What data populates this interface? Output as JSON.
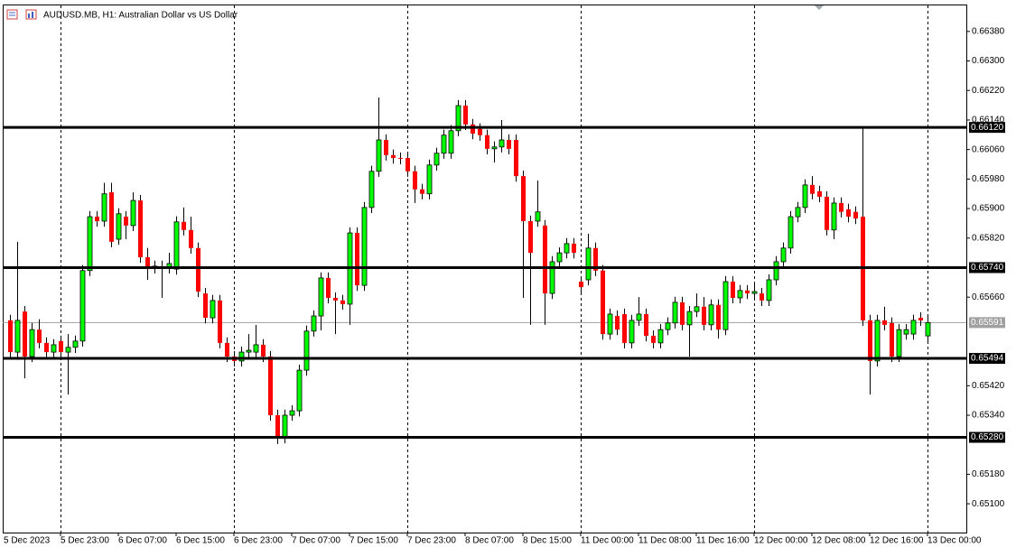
{
  "chart_data": {
    "type": "candlestick",
    "title": "AUDUSD.MB, H1:  Australian Dollar vs US Dollar",
    "up_color": "#00ff00",
    "down_color": "#ff0000",
    "open": [
      0.65597,
      0.65511,
      0.65621,
      0.65499,
      0.65572,
      0.65536,
      0.65511,
      0.65541,
      0.65511,
      0.65524,
      0.65541,
      0.65732,
      0.65878,
      0.65866,
      0.65944,
      0.65817,
      0.65878,
      0.65854,
      0.65922,
      0.65768,
      0.65739,
      0.65744,
      0.65739,
      0.65736,
      0.65864,
      0.65842,
      0.65793,
      0.6567,
      0.65604,
      0.65651,
      0.65536,
      0.65499,
      0.65487,
      0.65511,
      0.65511,
      0.65531,
      0.65499,
      0.6534,
      0.65279,
      0.6534,
      0.65352,
      0.65462,
      0.65568,
      0.65609,
      0.65712,
      0.65658,
      0.65651,
      0.65641,
      0.65834,
      0.65692,
      0.65903,
      0.66001,
      0.66086,
      0.66045,
      0.66037,
      0.66037,
      0.66001,
      0.65952,
      0.6594,
      0.66018,
      0.6605,
      0.6605,
      0.66111,
      0.66179,
      0.66128,
      0.66116,
      0.66099,
      0.66062,
      0.66067,
      0.66086,
      0.66086,
      0.65988,
      0.65866,
      0.65866,
      0.65854,
      0.6567,
      0.65756,
      0.6578,
      0.65805,
      0.65702,
      0.65707,
      0.65793,
      0.65732,
      0.6556,
      0.65609,
      0.65614,
      0.65536,
      0.65597,
      0.65614,
      0.65555,
      0.65536,
      0.65572,
      0.6559,
      0.65646,
      0.65585,
      0.65621,
      0.65634,
      0.65585,
      0.65639,
      0.65572,
      0.65702,
      0.65658,
      0.65678,
      0.6567,
      0.6567,
      0.65651,
      0.65707,
      0.65756,
      0.65793,
      0.65878,
      0.65903,
      0.65964,
      0.65947,
      0.65932,
      0.65842,
      0.65915,
      0.65898,
      0.65891,
      0.65878,
      0.65597,
      0.65487,
      0.65597,
      0.6559,
      0.65499,
      0.6556,
      0.6556,
      0.65604,
      0.65555
    ],
    "high": [
      0.65612,
      0.6581,
      0.65636,
      0.6559,
      0.656,
      0.65551,
      0.65546,
      0.65556,
      0.6556,
      0.65556,
      0.65747,
      0.65893,
      0.65893,
      0.6597,
      0.6597,
      0.65901,
      0.65893,
      0.65944,
      0.65937,
      0.65793,
      0.65759,
      0.65759,
      0.6578,
      0.65879,
      0.65903,
      0.65878,
      0.65808,
      0.65685,
      0.65666,
      0.65666,
      0.65551,
      0.65514,
      0.65526,
      0.6556,
      0.65585,
      0.65546,
      0.65514,
      0.65355,
      0.65355,
      0.65367,
      0.65477,
      0.65583,
      0.65624,
      0.65727,
      0.65727,
      0.65673,
      0.65666,
      0.65849,
      0.65849,
      0.65918,
      0.66016,
      0.66201,
      0.66101,
      0.6606,
      0.66052,
      0.66052,
      0.66016,
      0.65967,
      0.66033,
      0.66065,
      0.66114,
      0.66126,
      0.66194,
      0.66194,
      0.66143,
      0.66131,
      0.66114,
      0.66082,
      0.6614,
      0.66101,
      0.66101,
      0.66003,
      0.65881,
      0.65976,
      0.65869,
      0.65771,
      0.65795,
      0.6582,
      0.6582,
      0.65717,
      0.65832,
      0.65808,
      0.65747,
      0.65629,
      0.65624,
      0.65629,
      0.65612,
      0.6566,
      0.65629,
      0.6557,
      0.65587,
      0.65605,
      0.65661,
      0.65661,
      0.65636,
      0.6567,
      0.6566,
      0.65654,
      0.65654,
      0.65717,
      0.65717,
      0.65693,
      0.65693,
      0.657,
      0.65685,
      0.65722,
      0.65771,
      0.65808,
      0.65893,
      0.65918,
      0.65979,
      0.65988,
      0.65962,
      0.65947,
      0.6593,
      0.6593,
      0.65913,
      0.65906,
      0.66118,
      0.65612,
      0.65612,
      0.65634,
      0.65605,
      0.65587,
      0.65587,
      0.65612,
      0.65619,
      0.65612
    ],
    "low": [
      0.65496,
      0.65496,
      0.6544,
      0.65484,
      0.65521,
      0.65496,
      0.65496,
      0.65496,
      0.65396,
      0.65509,
      0.65526,
      0.65717,
      0.65851,
      0.65851,
      0.65795,
      0.65802,
      0.65817,
      0.65839,
      0.65753,
      0.65707,
      0.65724,
      0.65658,
      0.65724,
      0.65721,
      0.65827,
      0.65778,
      0.6566,
      0.65589,
      0.65589,
      0.65521,
      0.65484,
      0.65472,
      0.65472,
      0.65496,
      0.65496,
      0.65484,
      0.65325,
      0.65262,
      0.65264,
      0.65325,
      0.65337,
      0.65447,
      0.65553,
      0.6557,
      0.65643,
      0.6556,
      0.65626,
      0.65585,
      0.65677,
      0.65677,
      0.65888,
      0.65986,
      0.6603,
      0.66022,
      0.6602,
      0.65986,
      0.65915,
      0.65925,
      0.65925,
      0.66003,
      0.66035,
      0.66035,
      0.66096,
      0.66113,
      0.66088,
      0.66084,
      0.66047,
      0.66025,
      0.66052,
      0.66047,
      0.65973,
      0.65658,
      0.65585,
      0.65851,
      0.65585,
      0.65655,
      0.65741,
      0.65765,
      0.65765,
      0.65672,
      0.65692,
      0.65717,
      0.65545,
      0.65545,
      0.65557,
      0.65521,
      0.65521,
      0.65582,
      0.6554,
      0.65521,
      0.65521,
      0.65557,
      0.65575,
      0.6557,
      0.65499,
      0.65606,
      0.6557,
      0.6557,
      0.65548,
      0.65557,
      0.65643,
      0.65643,
      0.65655,
      0.65655,
      0.65636,
      0.65636,
      0.65692,
      0.65741,
      0.65778,
      0.65863,
      0.65888,
      0.65925,
      0.65917,
      0.65827,
      0.65817,
      0.65876,
      0.65863,
      0.65858,
      0.65582,
      0.65396,
      0.65472,
      0.6557,
      0.65484,
      0.65484,
      0.65545,
      0.65545,
      0.65582,
      0.6554
    ],
    "close": [
      0.65511,
      0.65597,
      0.65499,
      0.65572,
      0.65536,
      0.65511,
      0.65531,
      0.65511,
      0.65524,
      0.65541,
      0.65732,
      0.65878,
      0.65866,
      0.6594,
      0.6581,
      0.65886,
      0.65854,
      0.65922,
      0.65768,
      0.65736,
      0.65744,
      0.65739,
      0.65751,
      0.65864,
      0.65842,
      0.65793,
      0.65675,
      0.65604,
      0.65651,
      0.65536,
      0.65499,
      0.65487,
      0.65511,
      0.65516,
      0.65531,
      0.65499,
      0.6534,
      0.65279,
      0.6534,
      0.65352,
      0.65462,
      0.65568,
      0.65609,
      0.65712,
      0.65658,
      0.65651,
      0.65641,
      0.65834,
      0.65692,
      0.65903,
      0.66001,
      0.66086,
      0.66045,
      0.66037,
      0.66035,
      0.66001,
      0.65952,
      0.6594,
      0.66018,
      0.6605,
      0.66099,
      0.66111,
      0.66179,
      0.66128,
      0.66103,
      0.66099,
      0.66062,
      0.66067,
      0.66086,
      0.66062,
      0.65988,
      0.65866,
      0.6578,
      0.65891,
      0.6567,
      0.65756,
      0.6578,
      0.65805,
      0.6578,
      0.65687,
      0.65793,
      0.65732,
      0.6556,
      0.65614,
      0.65572,
      0.65536,
      0.65597,
      0.65614,
      0.65555,
      0.65536,
      0.65572,
      0.6559,
      0.65646,
      0.65585,
      0.65621,
      0.65634,
      0.65585,
      0.65639,
      0.65572,
      0.65702,
      0.65658,
      0.65678,
      0.6567,
      0.65675,
      0.65651,
      0.65707,
      0.65756,
      0.65793,
      0.65878,
      0.65903,
      0.65964,
      0.6594,
      0.65932,
      0.65842,
      0.65915,
      0.65891,
      0.65878,
      0.65873,
      0.65597,
      0.65487,
      0.65597,
      0.65585,
      0.65499,
      0.65572,
      0.65572,
      0.65597,
      0.65597,
      0.65591
    ],
    "ylim": [
      0.65022,
      0.66453
    ],
    "yticks": [
      {
        "value": 0.6638,
        "label": "0.66380"
      },
      {
        "value": 0.663,
        "label": "0.66300"
      },
      {
        "value": 0.6622,
        "label": "0.66220"
      },
      {
        "value": 0.6614,
        "label": "0.66140"
      },
      {
        "value": 0.6606,
        "label": "0.66060"
      },
      {
        "value": 0.6598,
        "label": "0.65980"
      },
      {
        "value": 0.659,
        "label": "0.65900"
      },
      {
        "value": 0.6582,
        "label": "0.65820"
      },
      {
        "value": 0.6566,
        "label": "0.65660"
      },
      {
        "value": 0.6542,
        "label": "0.65420"
      },
      {
        "value": 0.6534,
        "label": "0.65340"
      },
      {
        "value": 0.6518,
        "label": "0.65180"
      },
      {
        "value": 0.651,
        "label": "0.65100"
      }
    ],
    "xticks": [
      "5 Dec 2023",
      "5 Dec 23:00",
      "6 Dec 07:00",
      "6 Dec 15:00",
      "6 Dec 23:00",
      "7 Dec 07:00",
      "7 Dec 15:00",
      "7 Dec 23:00",
      "8 Dec 07:00",
      "8 Dec 15:00",
      "11 Dec 00:00",
      "11 Dec 08:00",
      "11 Dec 16:00",
      "12 Dec 00:00",
      "12 Dec 08:00",
      "12 Dec 16:00",
      "13 Dec 00:00"
    ],
    "levels": [
      {
        "value": 0.6612,
        "label": "0.66120"
      },
      {
        "value": 0.6574,
        "label": "0.65740"
      },
      0.65494,
      {
        "value": 0.6528,
        "label": "0.65280"
      }
    ],
    "current_price": 0.65591,
    "grid": true
  }
}
